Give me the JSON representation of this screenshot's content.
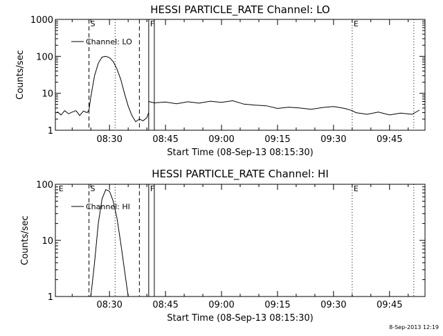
{
  "stamp": "8-Sep-2013 12:19",
  "chart_data": [
    {
      "type": "line",
      "title": "HESSI PARTICLE_RATE Channel: LO",
      "xlabel": "Start Time (08-Sep-13 08:15:30)",
      "ylabel": "Counts/sec",
      "y_scale": "log",
      "ylim": [
        1,
        1000
      ],
      "yticks": [
        "1",
        "10",
        "100",
        "1000"
      ],
      "xlim": [
        "08:15:30",
        "09:54:30"
      ],
      "xticks": [
        "08:30",
        "08:45",
        "09:00",
        "09:15",
        "09:30",
        "09:45"
      ],
      "legend": {
        "position": "top-left",
        "label": "Channel: LO"
      },
      "markers": [
        {
          "label": "S",
          "time": "08:24:30",
          "style": "dashed"
        },
        {
          "label": "",
          "time": "08:31:30",
          "style": "dotted"
        },
        {
          "label": "",
          "time": "08:38:00",
          "style": "dashed"
        },
        {
          "label": "F",
          "time": "08:40:30",
          "style": "solid"
        },
        {
          "label": "",
          "time": "08:42:00",
          "style": "solid"
        },
        {
          "label": "E",
          "time": "09:35:00",
          "style": "dotted"
        },
        {
          "label": "",
          "time": "09:51:30",
          "style": "dotted"
        }
      ],
      "series": [
        {
          "name": "Channel: LO",
          "segments": [
            {
              "t": [
                "08:16:00",
                "08:17:00",
                "08:18:00",
                "08:19:00",
                "08:20:00",
                "08:21:00",
                "08:22:00",
                "08:23:00",
                "08:24:00",
                "08:24:30",
                "08:25:00",
                "08:26:00",
                "08:27:00",
                "08:28:00",
                "08:29:00",
                "08:30:00",
                "08:31:00",
                "08:32:00",
                "08:33:00",
                "08:34:00",
                "08:35:00",
                "08:36:00",
                "08:37:00",
                "08:38:00",
                "08:39:00",
                "08:40:00",
                "08:40:30"
              ],
              "y": [
                3.2,
                2.6,
                3.4,
                2.8,
                3.1,
                3.4,
                2.5,
                3.3,
                3.0,
                3.5,
                8,
                30,
                65,
                95,
                100,
                92,
                72,
                45,
                24,
                10,
                4.5,
                2.5,
                1.7,
                2.0,
                1.8,
                2.2,
                3.0
              ]
            },
            {
              "t": [
                "08:40:30",
                "08:42:00",
                "08:45:00",
                "08:48:00",
                "08:51:00",
                "08:54:00",
                "08:57:00",
                "09:00:00",
                "09:03:00",
                "09:06:00",
                "09:09:00",
                "09:12:00",
                "09:15:00",
                "09:18:00",
                "09:21:00",
                "09:24:00",
                "09:27:00",
                "09:30:00",
                "09:33:00",
                "09:35:00",
                "09:36:00",
                "09:39:00",
                "09:42:00",
                "09:45:00",
                "09:48:00",
                "09:51:00",
                "09:53:00"
              ],
              "y": [
                6,
                5.5,
                5.8,
                5.2,
                5.9,
                5.4,
                6.1,
                5.7,
                6.3,
                5.1,
                4.8,
                4.6,
                3.9,
                4.2,
                4.0,
                3.7,
                4.1,
                4.4,
                3.9,
                3.4,
                3.0,
                2.7,
                3.1,
                2.6,
                2.9,
                2.7,
                3.5
              ]
            }
          ]
        }
      ]
    },
    {
      "type": "line",
      "title": "HESSI PARTICLE_RATE Channel: HI",
      "xlabel": "Start Time (08-Sep-13 08:15:30)",
      "ylabel": "Counts/sec",
      "y_scale": "log",
      "ylim": [
        1,
        100
      ],
      "yticks": [
        "1",
        "10",
        "100"
      ],
      "xlim": [
        "08:15:30",
        "09:54:30"
      ],
      "xticks": [
        "08:30",
        "08:45",
        "09:00",
        "09:15",
        "09:30",
        "09:45"
      ],
      "legend": {
        "position": "top-left",
        "label": "Channel: HI"
      },
      "markers": [
        {
          "label": "E",
          "time": "08:16:00",
          "style": "none"
        },
        {
          "label": "S",
          "time": "08:24:30",
          "style": "dashed"
        },
        {
          "label": "",
          "time": "08:31:30",
          "style": "dotted"
        },
        {
          "label": "",
          "time": "08:38:00",
          "style": "dashed"
        },
        {
          "label": "F",
          "time": "08:40:30",
          "style": "solid"
        },
        {
          "label": "",
          "time": "08:42:00",
          "style": "solid"
        },
        {
          "label": "E",
          "time": "09:35:00",
          "style": "dotted"
        },
        {
          "label": "",
          "time": "09:51:30",
          "style": "dotted"
        }
      ],
      "series": [
        {
          "name": "Channel: HI",
          "segments": [
            {
              "t": [
                "08:25:00",
                "08:26:00",
                "08:27:00",
                "08:28:00",
                "08:29:00",
                "08:30:00",
                "08:31:00",
                "08:32:00",
                "08:33:00",
                "08:34:00",
                "08:35:00"
              ],
              "y": [
                1,
                4,
                20,
                55,
                80,
                75,
                50,
                25,
                9,
                3,
                1
              ]
            }
          ]
        }
      ]
    }
  ]
}
